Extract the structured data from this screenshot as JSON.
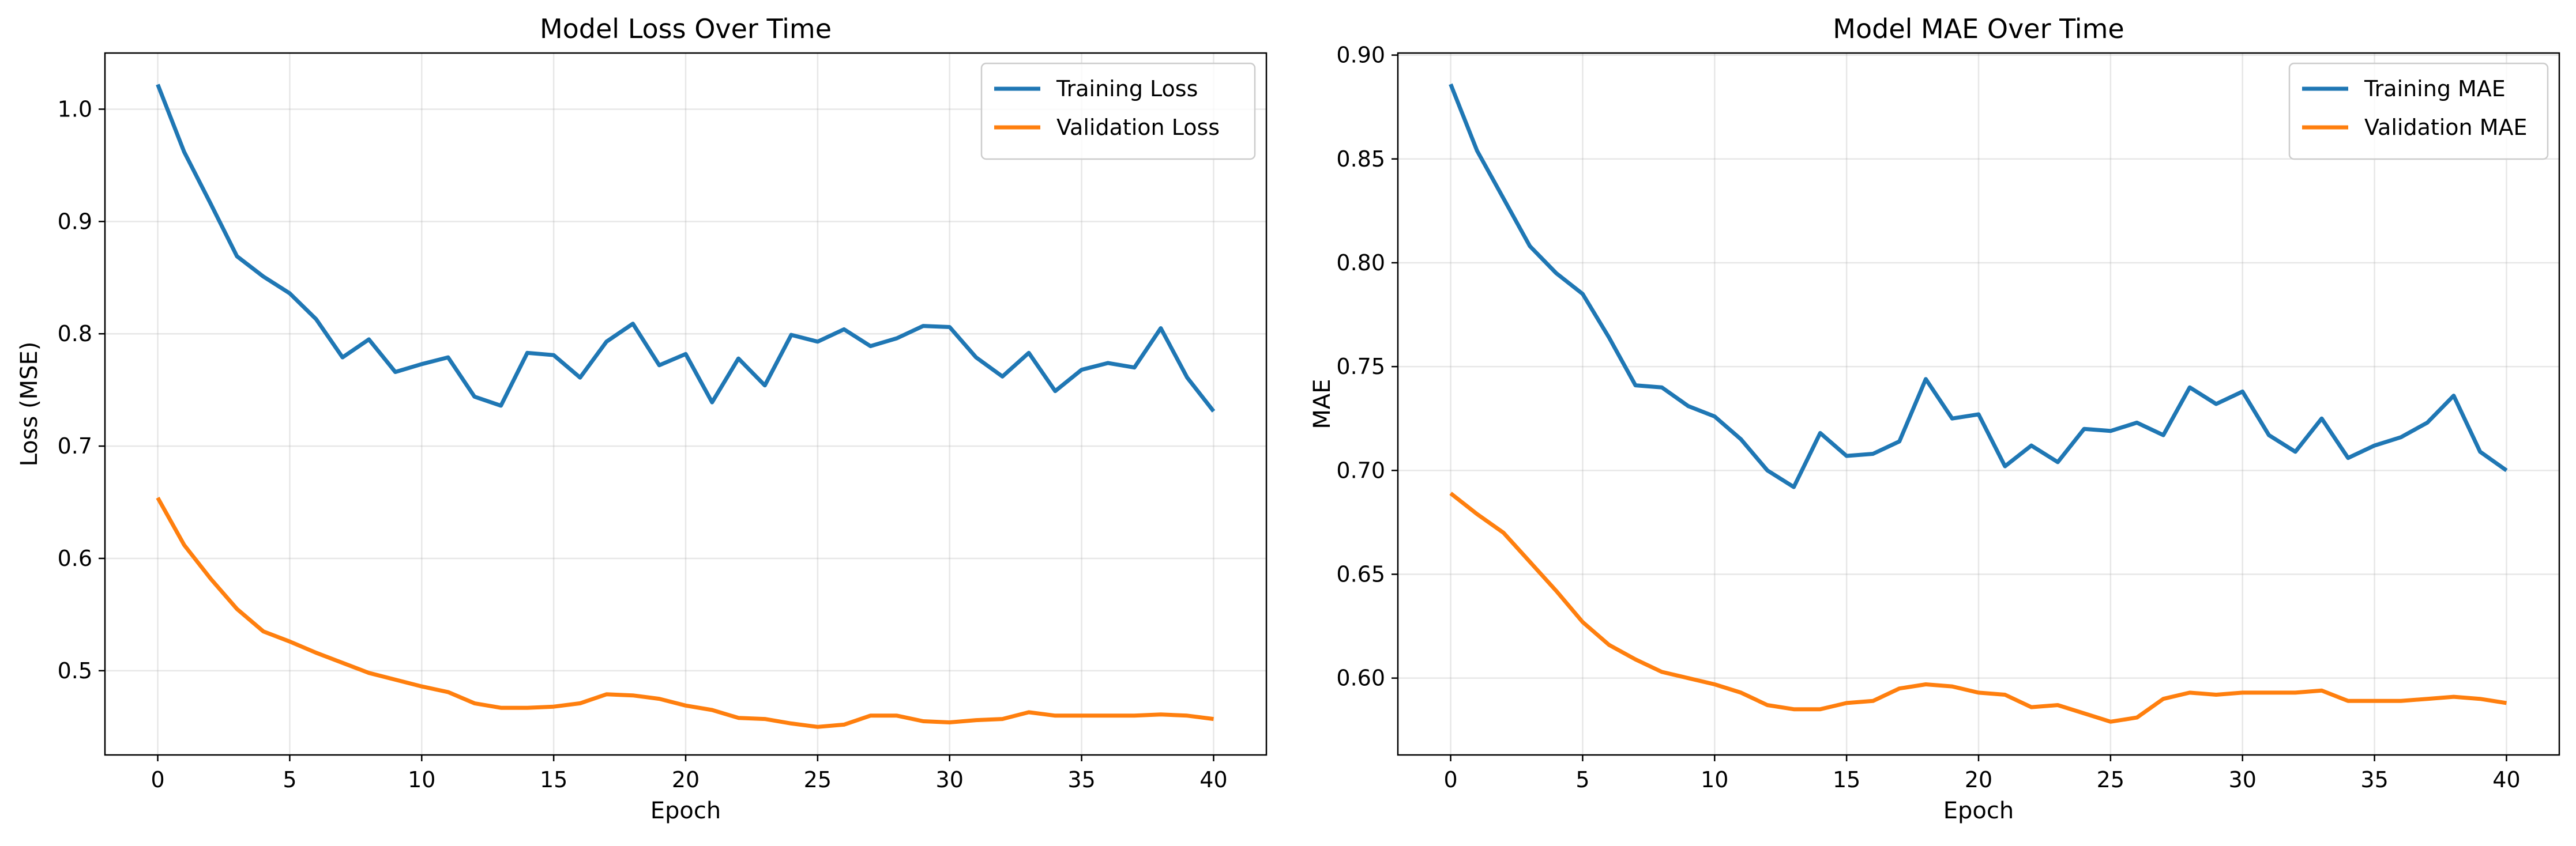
{
  "chart_data": [
    {
      "type": "line",
      "title": "Model Loss Over Time",
      "xlabel": "Epoch",
      "ylabel": "Loss (MSE)",
      "xlim": [
        -2,
        42
      ],
      "ylim": [
        0.425,
        1.05
      ],
      "x_ticks": [
        0,
        5,
        10,
        15,
        20,
        25,
        30,
        35,
        40
      ],
      "x_tick_labels": [
        "0",
        "5",
        "10",
        "15",
        "20",
        "25",
        "30",
        "35",
        "40"
      ],
      "y_ticks": [
        0.5,
        0.6,
        0.7,
        0.8,
        0.9,
        1.0
      ],
      "y_tick_labels": [
        "0.5",
        "0.6",
        "0.7",
        "0.8",
        "0.9",
        "1.0"
      ],
      "grid": true,
      "legend_position": "top-right",
      "x": [
        0,
        1,
        2,
        3,
        4,
        5,
        6,
        7,
        8,
        9,
        10,
        11,
        12,
        13,
        14,
        15,
        16,
        17,
        18,
        19,
        20,
        21,
        22,
        23,
        24,
        25,
        26,
        27,
        28,
        29,
        30,
        31,
        32,
        33,
        34,
        35,
        36,
        37,
        38,
        39,
        40
      ],
      "series": [
        {
          "name": "Training Loss",
          "color": "#1f77b4",
          "values": [
            1.022,
            0.962,
            0.916,
            0.869,
            0.851,
            0.836,
            0.813,
            0.779,
            0.795,
            0.766,
            0.773,
            0.779,
            0.744,
            0.736,
            0.783,
            0.781,
            0.761,
            0.793,
            0.809,
            0.772,
            0.782,
            0.739,
            0.778,
            0.754,
            0.799,
            0.793,
            0.804,
            0.789,
            0.796,
            0.807,
            0.806,
            0.779,
            0.762,
            0.783,
            0.749,
            0.768,
            0.774,
            0.77,
            0.805,
            0.761,
            0.731
          ]
        },
        {
          "name": "Validation Loss",
          "color": "#ff7f0e",
          "values": [
            0.654,
            0.612,
            0.582,
            0.555,
            0.535,
            0.526,
            0.516,
            0.507,
            0.498,
            0.492,
            0.486,
            0.481,
            0.471,
            0.467,
            0.467,
            0.468,
            0.471,
            0.479,
            0.478,
            0.475,
            0.469,
            0.465,
            0.458,
            0.457,
            0.453,
            0.45,
            0.452,
            0.46,
            0.46,
            0.455,
            0.454,
            0.456,
            0.457,
            0.463,
            0.46,
            0.46,
            0.46,
            0.46,
            0.461,
            0.46,
            0.457
          ]
        }
      ]
    },
    {
      "type": "line",
      "title": "Model MAE Over Time",
      "xlabel": "Epoch",
      "ylabel": "MAE",
      "xlim": [
        -2,
        42
      ],
      "ylim": [
        0.563,
        0.901
      ],
      "x_ticks": [
        0,
        5,
        10,
        15,
        20,
        25,
        30,
        35,
        40
      ],
      "x_tick_labels": [
        "0",
        "5",
        "10",
        "15",
        "20",
        "25",
        "30",
        "35",
        "40"
      ],
      "y_ticks": [
        0.6,
        0.65,
        0.7,
        0.75,
        0.8,
        0.85,
        0.9
      ],
      "y_tick_labels": [
        "0.60",
        "0.65",
        "0.70",
        "0.75",
        "0.80",
        "0.85",
        "0.90"
      ],
      "grid": true,
      "legend_position": "top-right",
      "x": [
        0,
        1,
        2,
        3,
        4,
        5,
        6,
        7,
        8,
        9,
        10,
        11,
        12,
        13,
        14,
        15,
        16,
        17,
        18,
        19,
        20,
        21,
        22,
        23,
        24,
        25,
        26,
        27,
        28,
        29,
        30,
        31,
        32,
        33,
        34,
        35,
        36,
        37,
        38,
        39,
        40
      ],
      "series": [
        {
          "name": "Training MAE",
          "color": "#1f77b4",
          "values": [
            0.886,
            0.854,
            0.831,
            0.808,
            0.795,
            0.785,
            0.764,
            0.741,
            0.74,
            0.731,
            0.726,
            0.715,
            0.7,
            0.692,
            0.718,
            0.707,
            0.708,
            0.714,
            0.744,
            0.725,
            0.727,
            0.702,
            0.712,
            0.704,
            0.72,
            0.719,
            0.723,
            0.717,
            0.74,
            0.732,
            0.738,
            0.717,
            0.709,
            0.725,
            0.706,
            0.712,
            0.716,
            0.723,
            0.736,
            0.709,
            0.7
          ]
        },
        {
          "name": "Validation MAE",
          "color": "#ff7f0e",
          "values": [
            0.689,
            0.679,
            0.67,
            0.656,
            0.642,
            0.627,
            0.616,
            0.609,
            0.603,
            0.6,
            0.597,
            0.593,
            0.587,
            0.585,
            0.585,
            0.588,
            0.589,
            0.595,
            0.597,
            0.596,
            0.593,
            0.592,
            0.586,
            0.587,
            0.583,
            0.579,
            0.581,
            0.59,
            0.593,
            0.592,
            0.593,
            0.593,
            0.593,
            0.594,
            0.589,
            0.589,
            0.589,
            0.59,
            0.591,
            0.59,
            0.588
          ]
        }
      ]
    }
  ]
}
